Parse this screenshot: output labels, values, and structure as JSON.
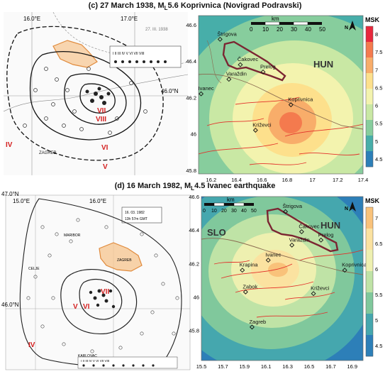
{
  "top": {
    "title_pre": "(c) 27 March 1938, M",
    "title_sub": "L",
    "title_post": "5.6 Koprivnica (Novigrad Podravski)",
    "historical_map": {
      "lon_labels": [
        "16.0°E",
        "17.0°E"
      ],
      "lat_labels": [
        "46.0°N"
      ],
      "place_labels": [
        "ZAGREB"
      ],
      "isoseismal_labels": [
        "VII",
        "VIII",
        "VI",
        "V",
        "IV"
      ],
      "legend_items": [
        "I",
        "II",
        "III",
        "IV",
        "V",
        "VI",
        "VII",
        "VIII"
      ],
      "annotation": "27. III. 1938"
    },
    "intensity_map": {
      "country_label": "HUN",
      "scale_title": "km",
      "scale_ticks": [
        "0",
        "10",
        "20",
        "30",
        "40",
        "50"
      ],
      "north": "N",
      "towns": [
        {
          "name": "Štrigova",
          "lon": 16.27,
          "lat": 46.52
        },
        {
          "name": "Čakovec",
          "lon": 16.43,
          "lat": 46.38
        },
        {
          "name": "Varaždin",
          "lon": 16.34,
          "lat": 46.3
        },
        {
          "name": "Prelog",
          "lon": 16.61,
          "lat": 46.34
        },
        {
          "name": "Ivanec",
          "lon": 16.12,
          "lat": 46.22
        },
        {
          "name": "Koprivnica",
          "lon": 16.83,
          "lat": 46.16
        },
        {
          "name": "Križevci",
          "lon": 16.55,
          "lat": 46.02
        }
      ],
      "x_ticks": [
        "16.2",
        "16.4",
        "16.6",
        "16.8",
        "17",
        "17.2",
        "17.4"
      ],
      "y_ticks": [
        "46.6",
        "46.4",
        "46.2",
        "46",
        "45.8"
      ],
      "xlim": [
        16.1,
        17.4
      ],
      "ylim": [
        45.78,
        46.65
      ],
      "epicenter": {
        "lon": 16.88,
        "lat": 46.05
      },
      "colorbar": {
        "title": "MSK",
        "ticks": [
          "8",
          "7.5",
          "7",
          "6.5",
          "6",
          "5.5",
          "5",
          "4.5"
        ],
        "colors": [
          "#e8283c",
          "#f47a4e",
          "#f8ad6a",
          "#fde08c",
          "#f3f3ae",
          "#c9e8a4",
          "#87cd9d",
          "#47aea9",
          "#2c7fb8"
        ]
      }
    }
  },
  "bottom": {
    "title_pre": "(d) 16 March 1982, M",
    "title_sub": "L",
    "title_post": "4.5 Ivanec earthquake",
    "historical_map": {
      "lon_labels": [
        "15.0°E",
        "16.0°E"
      ],
      "lat_labels": [
        "47.0°N",
        "46.0°N"
      ],
      "place_labels": [
        "MARIBOR",
        "ZAGREB",
        "KARLOVAC",
        "CELJE"
      ],
      "isoseismal_labels": [
        "VII",
        "VI",
        "V",
        "IV"
      ],
      "legend_items": [
        "I",
        "II",
        "III",
        "IV",
        "V",
        "VI",
        "VII",
        "VIII"
      ],
      "info_box": [
        "16. 03. 1982",
        "13h 57m GMT"
      ]
    },
    "intensity_map": {
      "country_labels": [
        "SLO",
        "HUN"
      ],
      "scale_title": "km",
      "scale_ticks": [
        "0",
        "10",
        "20",
        "30",
        "40",
        "50"
      ],
      "north": "N",
      "towns": [
        {
          "name": "Štrigova",
          "lon": 16.28,
          "lat": 46.51
        },
        {
          "name": "Čakovec",
          "lon": 16.43,
          "lat": 46.39
        },
        {
          "name": "Varaždin",
          "lon": 16.34,
          "lat": 46.31
        },
        {
          "name": "Prelog",
          "lon": 16.61,
          "lat": 46.34
        },
        {
          "name": "Ivanec",
          "lon": 16.12,
          "lat": 46.22
        },
        {
          "name": "Krapina",
          "lon": 15.88,
          "lat": 46.16
        },
        {
          "name": "Koprivnica",
          "lon": 16.83,
          "lat": 46.16
        },
        {
          "name": "Zabok",
          "lon": 15.91,
          "lat": 46.03
        },
        {
          "name": "Križevci",
          "lon": 16.54,
          "lat": 46.02
        },
        {
          "name": "Zagreb",
          "lon": 15.97,
          "lat": 45.82
        }
      ],
      "x_ticks": [
        "15.5",
        "15.7",
        "15.9",
        "16.1",
        "16.3",
        "16.5",
        "16.7",
        "16.9"
      ],
      "y_ticks": [
        "46.6",
        "46.4",
        "46.2",
        "46",
        "45.8"
      ],
      "xlim": [
        15.5,
        17.0
      ],
      "ylim": [
        45.62,
        46.6
      ],
      "epicenter": {
        "lon": 16.12,
        "lat": 46.22
      },
      "colorbar": {
        "title": "MSK",
        "ticks": [
          "7",
          "6.5",
          "6",
          "5.5",
          "5",
          "4.5"
        ],
        "colors": [
          "#f9c27a",
          "#fbe2a0",
          "#eef0b0",
          "#bfe3a6",
          "#80c89c",
          "#45a7ae",
          "#2d7fb8"
        ]
      }
    }
  }
}
